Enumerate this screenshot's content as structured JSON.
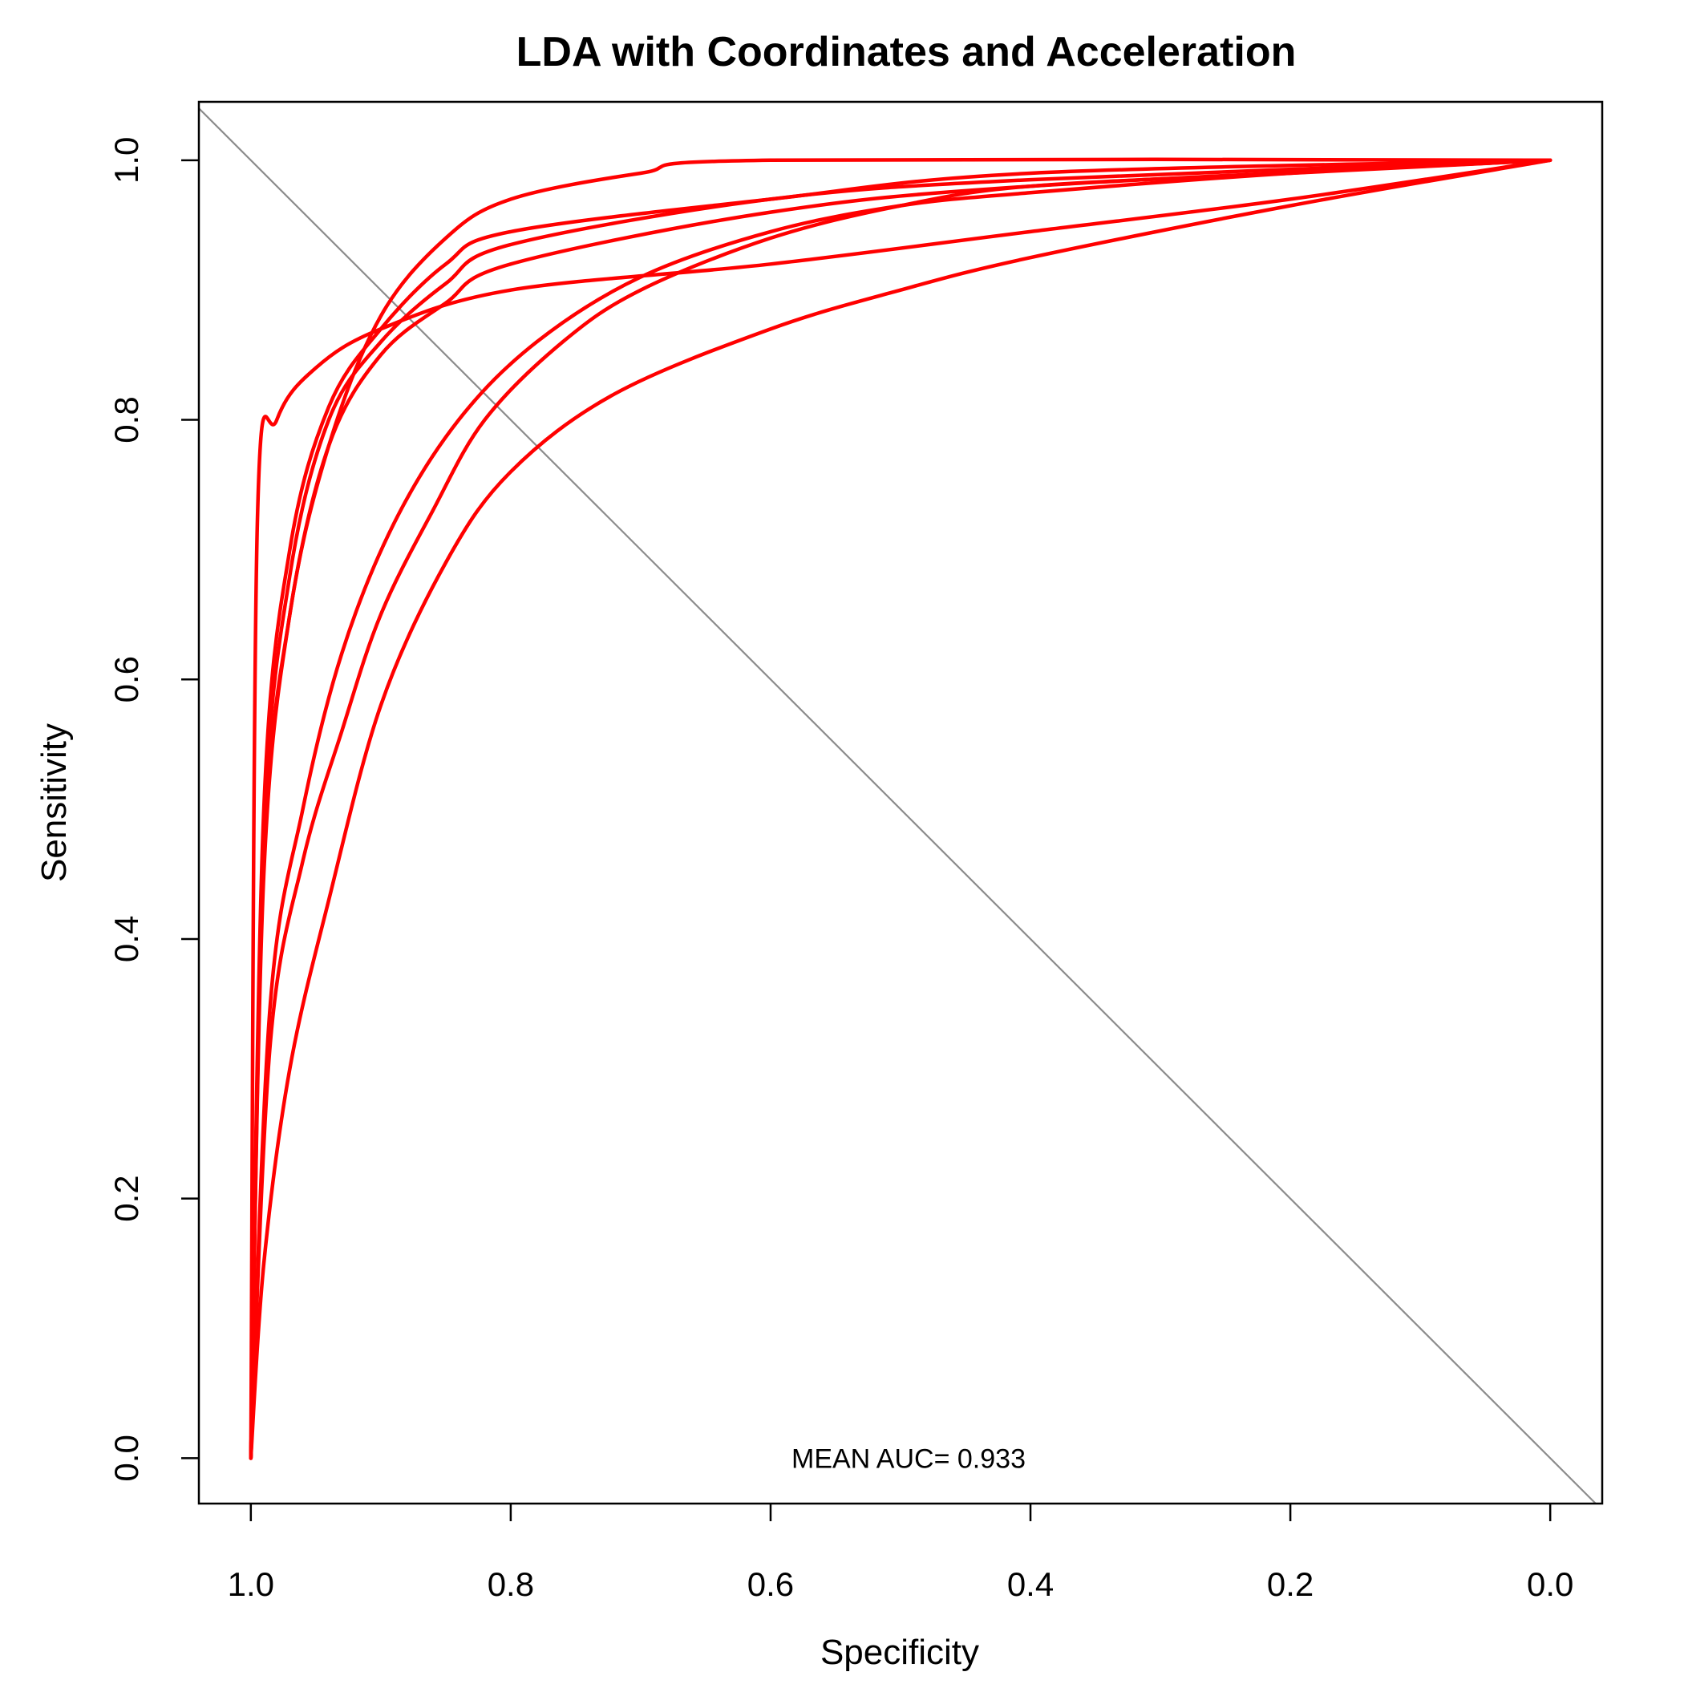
{
  "chart_data": {
    "type": "line",
    "title": "LDA with Coordinates and Acceleration",
    "xlabel": "Specificity",
    "ylabel": "Sensitivity",
    "x_reversed": true,
    "xlim": [
      1.04,
      -0.04
    ],
    "ylim": [
      -0.035,
      1.045
    ],
    "x_ticks": [
      1.0,
      0.8,
      0.6,
      0.4,
      0.2,
      0.0
    ],
    "x_tick_labels": [
      "1.0",
      "0.8",
      "0.6",
      "0.4",
      "0.2",
      "0.0"
    ],
    "y_ticks": [
      0.0,
      0.2,
      0.4,
      0.6,
      0.8,
      1.0
    ],
    "y_tick_labels": [
      "0.0",
      "0.2",
      "0.4",
      "0.6",
      "0.8",
      "1.0"
    ],
    "grid": false,
    "line_color": "#ff0000",
    "diagonal_color": "#8c8c8c",
    "annotation": "MEAN AUC= 0.933",
    "annotation_at": [
      0.5,
      0.0
    ],
    "series": [
      {
        "points": [
          [
            1.0,
            0.0
          ],
          [
            0.995,
            0.72
          ],
          [
            0.98,
            0.8
          ],
          [
            0.95,
            0.84
          ],
          [
            0.9,
            0.87
          ],
          [
            0.8,
            0.9
          ],
          [
            0.6,
            0.92
          ],
          [
            0.4,
            0.945
          ],
          [
            0.2,
            0.97
          ],
          [
            0.0,
            1.0
          ]
        ]
      },
      {
        "points": [
          [
            1.0,
            0.0
          ],
          [
            0.99,
            0.45
          ],
          [
            0.97,
            0.65
          ],
          [
            0.94,
            0.78
          ],
          [
            0.9,
            0.88
          ],
          [
            0.85,
            0.94
          ],
          [
            0.8,
            0.97
          ],
          [
            0.7,
            0.99
          ],
          [
            0.6,
            1.0
          ],
          [
            0.0,
            1.0
          ]
        ]
      },
      {
        "points": [
          [
            1.0,
            0.0
          ],
          [
            0.99,
            0.5
          ],
          [
            0.97,
            0.7
          ],
          [
            0.94,
            0.81
          ],
          [
            0.9,
            0.87
          ],
          [
            0.85,
            0.92
          ],
          [
            0.8,
            0.945
          ],
          [
            0.6,
            0.97
          ],
          [
            0.4,
            0.99
          ],
          [
            0.0,
            1.0
          ]
        ]
      },
      {
        "points": [
          [
            1.0,
            0.0
          ],
          [
            0.99,
            0.48
          ],
          [
            0.97,
            0.68
          ],
          [
            0.94,
            0.8
          ],
          [
            0.9,
            0.86
          ],
          [
            0.85,
            0.905
          ],
          [
            0.8,
            0.935
          ],
          [
            0.6,
            0.97
          ],
          [
            0.4,
            0.985
          ],
          [
            0.0,
            1.0
          ]
        ]
      },
      {
        "points": [
          [
            1.0,
            0.0
          ],
          [
            0.99,
            0.46
          ],
          [
            0.97,
            0.65
          ],
          [
            0.94,
            0.78
          ],
          [
            0.9,
            0.85
          ],
          [
            0.85,
            0.89
          ],
          [
            0.8,
            0.92
          ],
          [
            0.6,
            0.96
          ],
          [
            0.4,
            0.98
          ],
          [
            0.0,
            1.0
          ]
        ]
      },
      {
        "points": [
          [
            1.0,
            0.0
          ],
          [
            0.985,
            0.35
          ],
          [
            0.96,
            0.5
          ],
          [
            0.93,
            0.62
          ],
          [
            0.89,
            0.72
          ],
          [
            0.84,
            0.8
          ],
          [
            0.78,
            0.86
          ],
          [
            0.7,
            0.91
          ],
          [
            0.6,
            0.945
          ],
          [
            0.5,
            0.965
          ],
          [
            0.4,
            0.975
          ],
          [
            0.2,
            0.99
          ],
          [
            0.0,
            1.0
          ]
        ]
      },
      {
        "points": [
          [
            1.0,
            0.0
          ],
          [
            0.985,
            0.32
          ],
          [
            0.96,
            0.46
          ],
          [
            0.93,
            0.56
          ],
          [
            0.9,
            0.65
          ],
          [
            0.86,
            0.73
          ],
          [
            0.82,
            0.8
          ],
          [
            0.76,
            0.86
          ],
          [
            0.7,
            0.9
          ],
          [
            0.6,
            0.94
          ],
          [
            0.5,
            0.965
          ],
          [
            0.4,
            0.98
          ],
          [
            0.2,
            0.99
          ],
          [
            0.0,
            1.0
          ]
        ]
      },
      {
        "points": [
          [
            1.0,
            0.0
          ],
          [
            0.99,
            0.15
          ],
          [
            0.97,
            0.3
          ],
          [
            0.94,
            0.43
          ],
          [
            0.9,
            0.58
          ],
          [
            0.85,
            0.69
          ],
          [
            0.8,
            0.76
          ],
          [
            0.72,
            0.82
          ],
          [
            0.6,
            0.87
          ],
          [
            0.5,
            0.9
          ],
          [
            0.4,
            0.925
          ],
          [
            0.2,
            0.965
          ],
          [
            0.0,
            1.0
          ]
        ]
      }
    ]
  }
}
